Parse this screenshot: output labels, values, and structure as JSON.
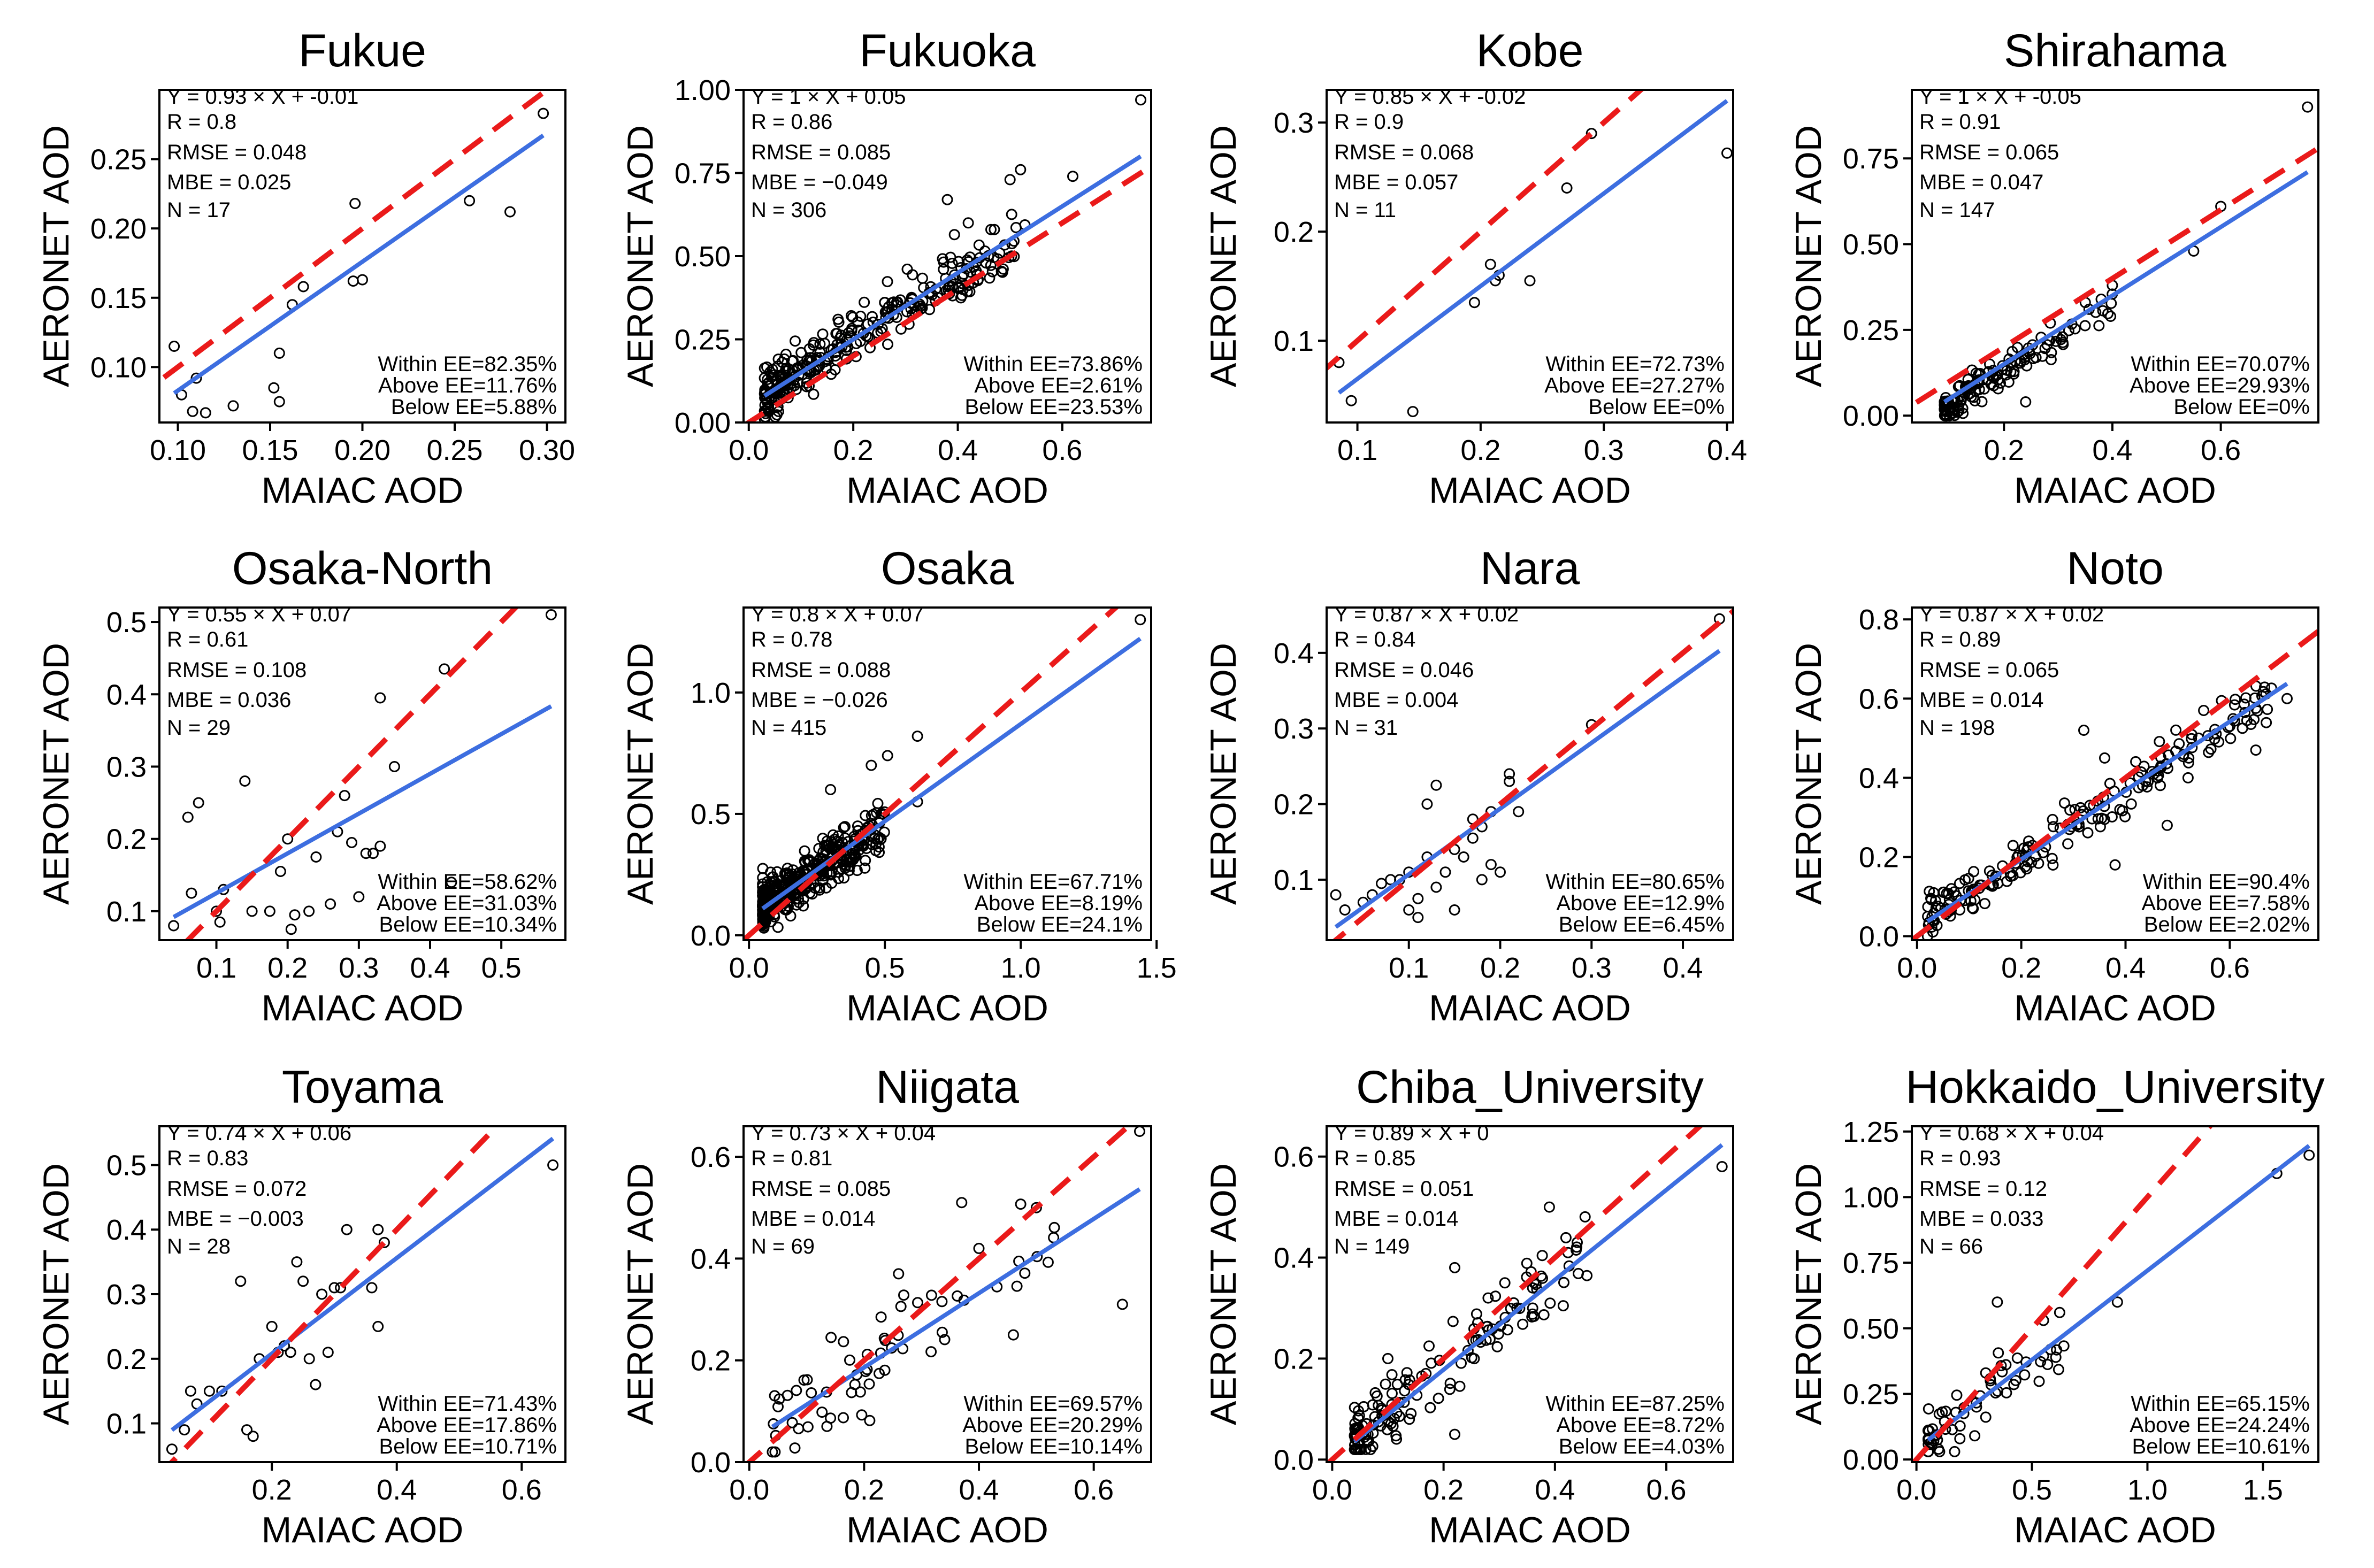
{
  "chart_data": [
    {
      "type": "scatter",
      "title": "Fukue",
      "xlabel": "MAIAC AOD",
      "ylabel": "AERONET AOD",
      "xlim": [
        0.09,
        0.31
      ],
      "ylim": [
        0.06,
        0.3
      ],
      "xticks": [
        "0.10",
        "0.15",
        "0.20",
        "0.25",
        "0.30"
      ],
      "yticks": [
        "0.10",
        "0.15",
        "0.20",
        "0.25"
      ],
      "stats": [
        "Y = 0.93 × X + -0.01",
        "R = 0.8",
        "RMSE = 0.048",
        "MBE = 0.025",
        "N = 17"
      ],
      "ee": [
        "Within EE=82.35%",
        "Above EE=11.76%",
        "Below EE=5.88%"
      ],
      "fit": {
        "slope": 0.93,
        "intercept": -0.01
      },
      "points": [
        [
          0.098,
          0.115
        ],
        [
          0.102,
          0.08
        ],
        [
          0.108,
          0.068
        ],
        [
          0.11,
          0.092
        ],
        [
          0.115,
          0.067
        ],
        [
          0.13,
          0.072
        ],
        [
          0.152,
          0.085
        ],
        [
          0.155,
          0.11
        ],
        [
          0.155,
          0.075
        ],
        [
          0.162,
          0.145
        ],
        [
          0.168,
          0.158
        ],
        [
          0.195,
          0.162
        ],
        [
          0.196,
          0.218
        ],
        [
          0.258,
          0.22
        ],
        [
          0.28,
          0.212
        ],
        [
          0.298,
          0.283
        ],
        [
          0.2,
          0.163
        ]
      ]
    },
    {
      "type": "scatter",
      "title": "Fukuoka",
      "xlabel": "MAIAC AOD",
      "ylabel": "AERONET AOD",
      "xlim": [
        -0.01,
        0.77
      ],
      "ylim": [
        0.0,
        1.0
      ],
      "xticks": [
        "0.0",
        "0.2",
        "0.4",
        "0.6"
      ],
      "yticks": [
        "0.00",
        "0.25",
        "0.50",
        "0.75",
        "1.00"
      ],
      "stats": [
        "Y = 1 × X + 0.05",
        "R = 0.86",
        "RMSE = 0.085",
        "MBE = −0.049",
        "N = 306"
      ],
      "ee": [
        "Within EE=73.86%",
        "Above EE=2.61%",
        "Below EE=23.53%"
      ],
      "fit": {
        "slope": 1.0,
        "intercept": 0.05
      },
      "points": []
    },
    {
      "type": "scatter",
      "title": "Kobe",
      "xlabel": "MAIAC AOD",
      "ylabel": "AERONET AOD",
      "xlim": [
        0.075,
        0.405
      ],
      "ylim": [
        0.025,
        0.33
      ],
      "xticks": [
        "0.1",
        "0.2",
        "0.3",
        "0.4"
      ],
      "yticks": [
        "0.1",
        "0.2",
        "0.3"
      ],
      "stats": [
        "Y = 0.85 × X + -0.02",
        "R = 0.9",
        "RMSE = 0.068",
        "MBE = 0.057",
        "N = 11"
      ],
      "ee": [
        "Within EE=72.73%",
        "Above EE=27.27%",
        "Below EE=0%"
      ],
      "fit": {
        "slope": 0.85,
        "intercept": -0.02
      },
      "points": [
        [
          0.085,
          0.08
        ],
        [
          0.095,
          0.045
        ],
        [
          0.145,
          0.035
        ],
        [
          0.195,
          0.135
        ],
        [
          0.208,
          0.17
        ],
        [
          0.212,
          0.155
        ],
        [
          0.215,
          0.16
        ],
        [
          0.24,
          0.155
        ],
        [
          0.27,
          0.24
        ],
        [
          0.29,
          0.29
        ],
        [
          0.4,
          0.272
        ]
      ]
    },
    {
      "type": "scatter",
      "title": "Shirahama",
      "xlabel": "MAIAC AOD",
      "ylabel": "AERONET AOD",
      "xlim": [
        0.03,
        0.78
      ],
      "ylim": [
        -0.02,
        0.95
      ],
      "xticks": [
        "0.2",
        "0.4",
        "0.6"
      ],
      "yticks": [
        "0.00",
        "0.25",
        "0.50",
        "0.75"
      ],
      "stats": [
        "Y = 1 × X + -0.05",
        "R = 0.91",
        "RMSE = 0.065",
        "MBE = 0.047",
        "N = 147"
      ],
      "ee": [
        "Within EE=70.07%",
        "Above EE=29.93%",
        "Below EE=0%"
      ],
      "fit": {
        "slope": 1.0,
        "intercept": -0.05
      },
      "points": []
    },
    {
      "type": "scatter",
      "title": "Osaka-North",
      "xlabel": "MAIAC AOD",
      "ylabel": "AERONET AOD",
      "xlim": [
        0.02,
        0.59
      ],
      "ylim": [
        0.06,
        0.52
      ],
      "xticks": [
        "0.1",
        "0.2",
        "0.3",
        "0.4",
        "0.5"
      ],
      "yticks": [
        "0.1",
        "0.2",
        "0.3",
        "0.4",
        "0.5"
      ],
      "stats": [
        "Y = 0.55 × X + 0.07",
        "R = 0.61",
        "RMSE = 0.108",
        "MBE = 0.036",
        "N = 29"
      ],
      "ee": [
        "Within EE=58.62%",
        "Above EE=31.03%",
        "Below EE=10.34%"
      ],
      "fit": {
        "slope": 0.55,
        "intercept": 0.07
      },
      "points": [
        [
          0.04,
          0.08
        ],
        [
          0.06,
          0.23
        ],
        [
          0.065,
          0.125
        ],
        [
          0.075,
          0.25
        ],
        [
          0.1,
          0.1
        ],
        [
          0.105,
          0.085
        ],
        [
          0.11,
          0.13
        ],
        [
          0.14,
          0.28
        ],
        [
          0.15,
          0.1
        ],
        [
          0.175,
          0.1
        ],
        [
          0.19,
          0.155
        ],
        [
          0.2,
          0.2
        ],
        [
          0.205,
          0.075
        ],
        [
          0.21,
          0.095
        ],
        [
          0.23,
          0.1
        ],
        [
          0.24,
          0.175
        ],
        [
          0.26,
          0.11
        ],
        [
          0.27,
          0.21
        ],
        [
          0.28,
          0.26
        ],
        [
          0.29,
          0.195
        ],
        [
          0.3,
          0.12
        ],
        [
          0.31,
          0.18
        ],
        [
          0.32,
          0.18
        ],
        [
          0.33,
          0.395
        ],
        [
          0.33,
          0.19
        ],
        [
          0.35,
          0.3
        ],
        [
          0.42,
          0.435
        ],
        [
          0.43,
          0.14
        ],
        [
          0.57,
          0.51
        ]
      ]
    },
    {
      "type": "scatter",
      "title": "Osaka",
      "xlabel": "MAIAC AOD",
      "ylabel": "AERONET AOD",
      "xlim": [
        -0.02,
        1.48
      ],
      "ylim": [
        -0.02,
        1.35
      ],
      "xticks": [
        "0.0",
        "0.5",
        "1.0",
        "1.5"
      ],
      "yticks": [
        "0.0",
        "0.5",
        "1.0"
      ],
      "stats": [
        "Y = 0.8 × X + 0.07",
        "R = 0.78",
        "RMSE = 0.088",
        "MBE = −0.026",
        "N = 415"
      ],
      "ee": [
        "Within EE=67.71%",
        "Above EE=8.19%",
        "Below EE=24.1%"
      ],
      "fit": {
        "slope": 0.8,
        "intercept": 0.07
      },
      "points": []
    },
    {
      "type": "scatter",
      "title": "Nara",
      "xlabel": "MAIAC AOD",
      "ylabel": "AERONET AOD",
      "xlim": [
        0.01,
        0.455
      ],
      "ylim": [
        0.02,
        0.46
      ],
      "xticks": [
        "0.1",
        "0.2",
        "0.3",
        "0.4"
      ],
      "yticks": [
        "0.1",
        "0.2",
        "0.3",
        "0.4"
      ],
      "stats": [
        "Y = 0.87 × X + 0.02",
        "R = 0.84",
        "RMSE = 0.046",
        "MBE = 0.004",
        "N = 31"
      ],
      "ee": [
        "Within EE=80.65%",
        "Above EE=12.9%",
        "Below EE=6.45%"
      ],
      "fit": {
        "slope": 0.87,
        "intercept": 0.02
      },
      "points": [
        [
          0.02,
          0.08
        ],
        [
          0.03,
          0.06
        ],
        [
          0.05,
          0.07
        ],
        [
          0.06,
          0.08
        ],
        [
          0.07,
          0.095
        ],
        [
          0.08,
          0.1
        ],
        [
          0.09,
          0.1
        ],
        [
          0.1,
          0.11
        ],
        [
          0.1,
          0.06
        ],
        [
          0.11,
          0.05
        ],
        [
          0.12,
          0.2
        ],
        [
          0.12,
          0.13
        ],
        [
          0.13,
          0.225
        ],
        [
          0.13,
          0.09
        ],
        [
          0.14,
          0.11
        ],
        [
          0.15,
          0.14
        ],
        [
          0.15,
          0.06
        ],
        [
          0.16,
          0.13
        ],
        [
          0.17,
          0.155
        ],
        [
          0.17,
          0.18
        ],
        [
          0.18,
          0.17
        ],
        [
          0.18,
          0.1
        ],
        [
          0.19,
          0.19
        ],
        [
          0.19,
          0.12
        ],
        [
          0.2,
          0.11
        ],
        [
          0.21,
          0.24
        ],
        [
          0.21,
          0.23
        ],
        [
          0.22,
          0.19
        ],
        [
          0.3,
          0.305
        ],
        [
          0.44,
          0.445
        ],
        [
          0.11,
          0.075
        ]
      ]
    },
    {
      "type": "scatter",
      "title": "Noto",
      "xlabel": "MAIAC AOD",
      "ylabel": "AERONET AOD",
      "xlim": [
        -0.01,
        0.77
      ],
      "ylim": [
        -0.01,
        0.83
      ],
      "xticks": [
        "0.0",
        "0.2",
        "0.4",
        "0.6"
      ],
      "yticks": [
        "0.0",
        "0.2",
        "0.4",
        "0.6",
        "0.8"
      ],
      "stats": [
        "Y = 0.87 × X + 0.02",
        "R = 0.89",
        "RMSE = 0.065",
        "MBE = 0.014",
        "N = 198"
      ],
      "ee": [
        "Within EE=90.4%",
        "Above EE=7.58%",
        "Below EE=2.02%"
      ],
      "fit": {
        "slope": 0.87,
        "intercept": 0.02
      },
      "points": []
    },
    {
      "type": "scatter",
      "title": "Toyama",
      "xlabel": "MAIAC AOD",
      "ylabel": "AERONET AOD",
      "xlim": [
        0.02,
        0.67
      ],
      "ylim": [
        0.04,
        0.56
      ],
      "xticks": [
        "0.2",
        "0.4",
        "0.6"
      ],
      "yticks": [
        "0.1",
        "0.2",
        "0.3",
        "0.4",
        "0.5"
      ],
      "stats": [
        "Y = 0.74 × X + 0.06",
        "R = 0.83",
        "RMSE = 0.072",
        "MBE = −0.003",
        "N = 28"
      ],
      "ee": [
        "Within EE=71.43%",
        "Above EE=17.86%",
        "Below EE=10.71%"
      ],
      "fit": {
        "slope": 0.74,
        "intercept": 0.06
      },
      "points": [
        [
          0.04,
          0.06
        ],
        [
          0.06,
          0.09
        ],
        [
          0.07,
          0.15
        ],
        [
          0.08,
          0.13
        ],
        [
          0.1,
          0.15
        ],
        [
          0.12,
          0.15
        ],
        [
          0.15,
          0.32
        ],
        [
          0.16,
          0.09
        ],
        [
          0.17,
          0.08
        ],
        [
          0.18,
          0.2
        ],
        [
          0.2,
          0.25
        ],
        [
          0.21,
          0.21
        ],
        [
          0.22,
          0.22
        ],
        [
          0.23,
          0.21
        ],
        [
          0.24,
          0.35
        ],
        [
          0.25,
          0.32
        ],
        [
          0.26,
          0.2
        ],
        [
          0.27,
          0.16
        ],
        [
          0.28,
          0.3
        ],
        [
          0.29,
          0.21
        ],
        [
          0.3,
          0.31
        ],
        [
          0.31,
          0.31
        ],
        [
          0.32,
          0.4
        ],
        [
          0.36,
          0.31
        ],
        [
          0.37,
          0.25
        ],
        [
          0.37,
          0.4
        ],
        [
          0.38,
          0.38
        ],
        [
          0.65,
          0.5
        ]
      ]
    },
    {
      "type": "scatter",
      "title": "Niigata",
      "xlabel": "MAIAC AOD",
      "ylabel": "AERONET AOD",
      "xlim": [
        -0.01,
        0.7
      ],
      "ylim": [
        0.0,
        0.66
      ],
      "xticks": [
        "0.0",
        "0.2",
        "0.4",
        "0.6"
      ],
      "yticks": [
        "0.0",
        "0.2",
        "0.4",
        "0.6"
      ],
      "stats": [
        "Y = 0.73 × X + 0.04",
        "R = 0.81",
        "RMSE = 0.085",
        "MBE = 0.014",
        "N = 69"
      ],
      "ee": [
        "Within EE=69.57%",
        "Above EE=20.29%",
        "Below EE=10.14%"
      ],
      "fit": {
        "slope": 0.73,
        "intercept": 0.04
      },
      "points": []
    },
    {
      "type": "scatter",
      "title": "Chiba_University",
      "xlabel": "MAIAC AOD",
      "ylabel": "AERONET AOD",
      "xlim": [
        -0.01,
        0.72
      ],
      "ylim": [
        -0.005,
        0.66
      ],
      "xticks": [
        "0.0",
        "0.2",
        "0.4",
        "0.6"
      ],
      "yticks": [
        "0.0",
        "0.2",
        "0.4",
        "0.6"
      ],
      "stats": [
        "Y = 0.89 × X + 0",
        "R = 0.85",
        "RMSE = 0.051",
        "MBE = 0.014",
        "N = 149"
      ],
      "ee": [
        "Within EE=87.25%",
        "Above EE=8.72%",
        "Below EE=4.03%"
      ],
      "fit": {
        "slope": 0.89,
        "intercept": 0.0
      },
      "points": []
    },
    {
      "type": "scatter",
      "title": "Hokkaido_University",
      "xlabel": "MAIAC AOD",
      "ylabel": "AERONET AOD",
      "xlim": [
        -0.02,
        1.74
      ],
      "ylim": [
        -0.01,
        1.27
      ],
      "xticks": [
        "0.0",
        "0.5",
        "1.0",
        "1.5"
      ],
      "yticks": [
        "0.00",
        "0.25",
        "0.50",
        "0.75",
        "1.00",
        "1.25"
      ],
      "stats": [
        "Y = 0.68 × X + 0.04",
        "R = 0.93",
        "RMSE = 0.12",
        "MBE = 0.033",
        "N = 66"
      ],
      "ee": [
        "Within EE=65.15%",
        "Above EE=24.24%",
        "Below EE=10.61%"
      ],
      "fit": {
        "slope": 0.68,
        "intercept": 0.04
      },
      "points": []
    }
  ],
  "colors": {
    "fit_line": "#3d6ee0",
    "one_to_one": "#ea1a1a",
    "points": "#000000"
  }
}
